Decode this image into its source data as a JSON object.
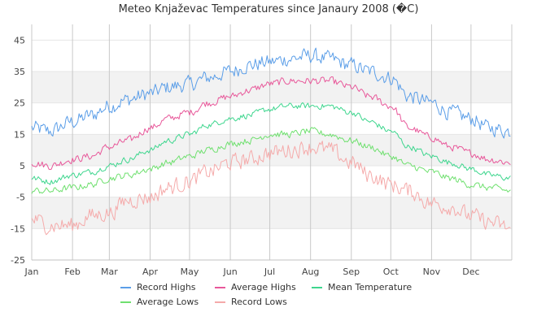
{
  "chart_data": {
    "type": "line",
    "title": "Meteo Knjaževac Temperatures since Janaury 2008 (�C)",
    "xlabel": "",
    "ylabel": "",
    "ylim": [
      -25,
      50
    ],
    "y_ticks": [
      -25,
      -15,
      -5,
      5,
      15,
      25,
      35,
      45
    ],
    "months": [
      "Jan",
      "Feb",
      "Mar",
      "Apr",
      "May",
      "Jun",
      "Jul",
      "Aug",
      "Sep",
      "Oct",
      "Nov",
      "Dec"
    ],
    "x_unit": "day of year",
    "grid": true,
    "bands": [
      [
        -15,
        -5
      ],
      [
        5,
        15
      ],
      [
        25,
        35
      ]
    ],
    "legend_position": "bottom",
    "x": [
      1,
      15,
      32,
      46,
      60,
      74,
      91,
      105,
      121,
      135,
      152,
      166,
      182,
      196,
      213,
      227,
      244,
      258,
      274,
      288,
      305,
      319,
      335,
      349,
      365
    ],
    "series": [
      {
        "name": "Record Highs",
        "color": "#5b9ee8",
        "values": [
          17,
          16,
          19,
          21,
          24,
          26,
          28,
          30,
          31,
          33,
          35,
          37,
          38,
          39,
          40,
          39,
          37,
          35,
          33,
          27,
          25,
          22,
          20,
          17,
          16
        ]
      },
      {
        "name": "Average Highs",
        "color": "#e8589a",
        "values": [
          6,
          5,
          7,
          8,
          11,
          13,
          17,
          20,
          22,
          25,
          27,
          29,
          31,
          32,
          32,
          32,
          30,
          27,
          24,
          17,
          14,
          11,
          9,
          7,
          6
        ]
      },
      {
        "name": "Mean Temperature",
        "color": "#3ed68e",
        "values": [
          1,
          0,
          2,
          3,
          5,
          7,
          10,
          13,
          15,
          18,
          20,
          21,
          23,
          24,
          24,
          24,
          22,
          19,
          16,
          11,
          8,
          6,
          4,
          2,
          1
        ]
      },
      {
        "name": "Average Lows",
        "color": "#6fe06f",
        "values": [
          -3,
          -3,
          -2,
          -1,
          1,
          2,
          4,
          6,
          8,
          10,
          12,
          13,
          15,
          15,
          16,
          15,
          13,
          11,
          8,
          5,
          3,
          1,
          -1,
          -2,
          -3
        ]
      },
      {
        "name": "Record Lows",
        "color": "#f5aaaa",
        "values": [
          -12,
          -14,
          -14,
          -11,
          -10,
          -6,
          -5,
          -2,
          0,
          3,
          6,
          7,
          9,
          10,
          11,
          10,
          6,
          2,
          -1,
          -3,
          -7,
          -8,
          -11,
          -13,
          -15
        ]
      }
    ]
  }
}
